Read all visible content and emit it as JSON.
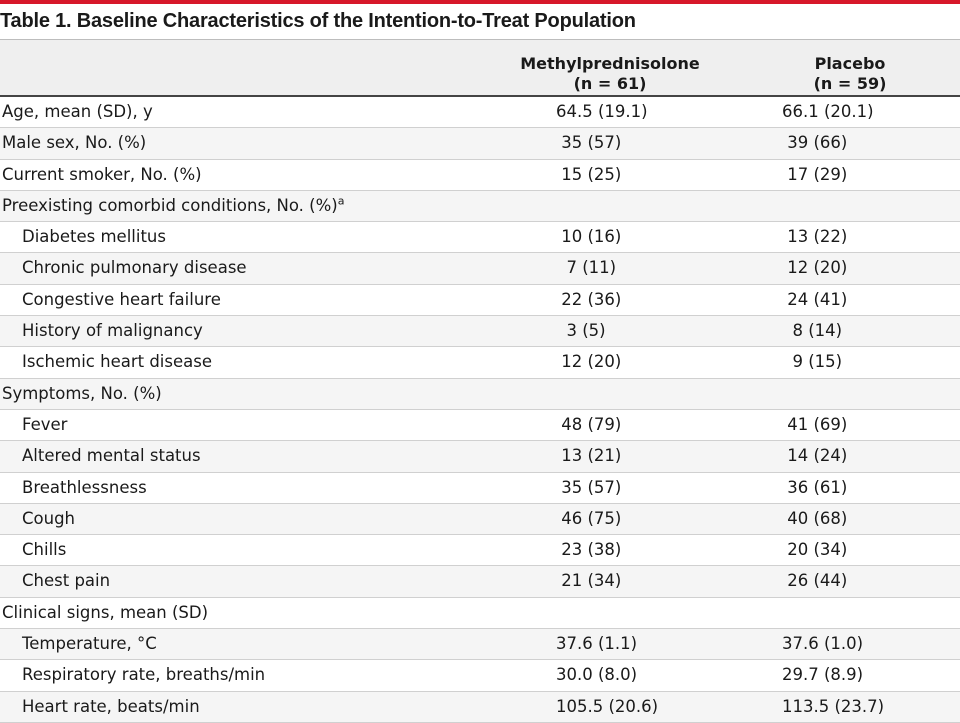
{
  "title": "Table 1. Baseline Characteristics of the Intention-to-Treat Population",
  "columns": [
    {
      "name": "Methylprednisolone",
      "n": "(n = 61)"
    },
    {
      "name": "Placebo",
      "n": "(n = 59)"
    }
  ],
  "rows": [
    {
      "label": "Age, mean (SD), y",
      "v1": "64.5 (19.1)",
      "v2": "66.1 (20.1)",
      "indent": false
    },
    {
      "label": "Male sex, No. (%)",
      "v1": " 35 (57)",
      "v2": " 39 (66)",
      "indent": false
    },
    {
      "label": "Current smoker, No. (%)",
      "v1": " 15 (25)",
      "v2": " 17 (29)",
      "indent": false
    },
    {
      "label": "Preexisting comorbid conditions, No. (%)",
      "sup": "a",
      "v1": "",
      "v2": "",
      "indent": false
    },
    {
      "label": "Diabetes mellitus",
      "v1": " 10 (16)",
      "v2": " 13 (22)",
      "indent": true
    },
    {
      "label": "Chronic pulmonary disease",
      "v1": "  7 (11)",
      "v2": " 12 (20)",
      "indent": true
    },
    {
      "label": "Congestive heart failure",
      "v1": " 22 (36)",
      "v2": " 24 (41)",
      "indent": true
    },
    {
      "label": "History of malignancy",
      "v1": "  3 (5)",
      "v2": "  8 (14)",
      "indent": true
    },
    {
      "label": "Ischemic heart disease",
      "v1": " 12 (20)",
      "v2": "  9 (15)",
      "indent": true
    },
    {
      "label": "Symptoms, No. (%)",
      "v1": "",
      "v2": "",
      "indent": false
    },
    {
      "label": "Fever",
      "v1": " 48 (79)",
      "v2": " 41 (69)",
      "indent": true
    },
    {
      "label": "Altered mental status",
      "v1": " 13 (21)",
      "v2": " 14 (24)",
      "indent": true
    },
    {
      "label": "Breathlessness",
      "v1": " 35 (57)",
      "v2": " 36 (61)",
      "indent": true
    },
    {
      "label": "Cough",
      "v1": " 46 (75)",
      "v2": " 40 (68)",
      "indent": true
    },
    {
      "label": "Chills",
      "v1": " 23 (38)",
      "v2": " 20 (34)",
      "indent": true
    },
    {
      "label": "Chest pain",
      "v1": " 21 (34)",
      "v2": " 26 (44)",
      "indent": true
    },
    {
      "label": "Clinical signs, mean (SD)",
      "v1": "",
      "v2": "",
      "indent": false
    },
    {
      "label": "Temperature, °C",
      "v1": "37.6 (1.1)",
      "v2": "37.6 (1.0)",
      "indent": true
    },
    {
      "label": "Respiratory rate, breaths/min",
      "v1": "30.0 (8.0)",
      "v2": "29.7 (8.9)",
      "indent": true
    },
    {
      "label": "Heart rate, beats/min",
      "v1": "105.5 (20.6)",
      "v2": "113.5 (23.7)",
      "indent": true
    }
  ],
  "colors": {
    "accent": "#d7182a",
    "header_bg": "#efefef"
  }
}
